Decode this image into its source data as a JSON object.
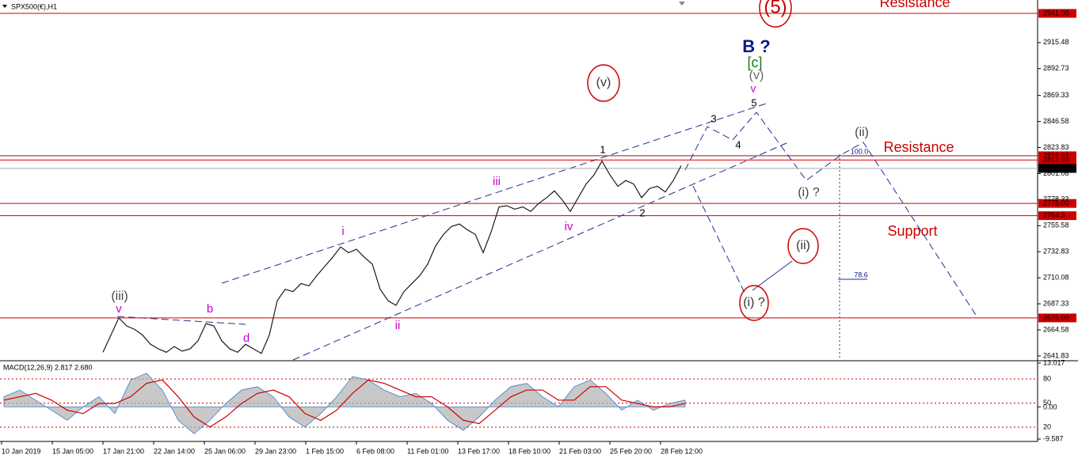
{
  "chart_data": {
    "type": "line",
    "title": "SPX500(€),H1",
    "x_labels": [
      "10 Jan 2019",
      "15 Jan 05:00",
      "17 Jan 21:00",
      "22 Jan 14:00",
      "25 Jan 06:00",
      "29 Jan 23:00",
      "1 Feb 15:00",
      "6 Feb 08:00",
      "11 Feb 01:00",
      "13 Feb 17:00",
      "18 Feb 10:00",
      "21 Feb 03:00",
      "25 Feb 20:00",
      "28 Feb 12:00"
    ],
    "values": [
      2645,
      2660,
      2675,
      2668,
      2665,
      2660,
      2652,
      2648,
      2645,
      2650,
      2646,
      2648,
      2655,
      2670,
      2668,
      2655,
      2648,
      2645,
      2652,
      2648,
      2644,
      2660,
      2690,
      2700,
      2698,
      2705,
      2703,
      2712,
      2720,
      2728,
      2737,
      2732,
      2735,
      2728,
      2722,
      2700,
      2690,
      2686,
      2698,
      2705,
      2712,
      2722,
      2738,
      2748,
      2755,
      2757,
      2752,
      2748,
      2732,
      2750,
      2772,
      2773,
      2770,
      2772,
      2768,
      2775,
      2780,
      2786,
      2778,
      2768,
      2780,
      2792,
      2800,
      2812,
      2800,
      2790,
      2795,
      2792,
      2780,
      2788,
      2790,
      2785,
      2795,
      2808
    ],
    "color": "#1a1a1a",
    "ylim": [
      2638.3,
      2952.7
    ],
    "yticks": [
      2915.48,
      2892.73,
      2869.33,
      2846.58,
      2823.83,
      2801.08,
      2778.33,
      2755.58,
      2732.83,
      2710.08,
      2687.33,
      2664.58,
      2641.83
    ],
    "levels": [
      {
        "value": 2941,
        "label": "2941.00"
      },
      2816.64,
      2812.93,
      2805.57,
      {
        "value": 2775,
        "label": "2775.00"
      },
      2764.3,
      {
        "value": 2675,
        "label": "2675.00"
      }
    ],
    "level_color": "#cc0000",
    "annotations": [
      "(5)",
      "Resistance",
      "B ?",
      "[c]",
      "(v)",
      "v",
      "5",
      "(v)",
      "3",
      "4",
      "1",
      "2",
      "(ii)",
      "Resistance",
      "100.0",
      "(i) ?",
      "(ii)",
      "(i) ?",
      "Support",
      "78.6",
      "iii",
      "iv",
      "i",
      "ii",
      "(iii)",
      "v",
      "b",
      "d"
    ],
    "macd": {
      "title": "MACD(12,26,9) 2.817 2.680",
      "ylim": [
        -9.587,
        13.017
      ],
      "yticks": [
        {
          "value": 13.017,
          "label": "13.017"
        },
        {
          "value": 0,
          "label": "0.00"
        },
        {
          "value": -9.587,
          "label": "-9.587"
        }
      ],
      "y2lim": [
        5.25,
        99.67
      ],
      "y2ticks": [
        80,
        50,
        20
      ],
      "series": [
        {
          "name": "MACD",
          "color": "#b0b0b0",
          "values": [
            3,
            5,
            2,
            -1,
            -4,
            0,
            3,
            -2,
            8,
            10,
            5,
            -4,
            -8,
            -4,
            1,
            5,
            6,
            3,
            -3,
            -6,
            -2,
            3,
            9,
            8,
            5,
            3,
            4,
            1,
            -4,
            -7,
            -3,
            2,
            6,
            7,
            3,
            0,
            6,
            8,
            4,
            -1,
            2,
            -1,
            1,
            2
          ]
        },
        {
          "name": "Signal",
          "color": "#cc0000",
          "values": [
            2,
            3,
            4,
            2,
            -1,
            -2,
            1,
            1,
            3,
            7,
            8,
            3,
            -3,
            -6,
            -3,
            1,
            4,
            5,
            3,
            -2,
            -4,
            -1,
            4,
            8,
            7,
            5,
            3,
            3,
            0,
            -4,
            -5,
            -1,
            3,
            5,
            5,
            2,
            2,
            6,
            6,
            2,
            1,
            0,
            0,
            1
          ]
        }
      ]
    }
  }
}
